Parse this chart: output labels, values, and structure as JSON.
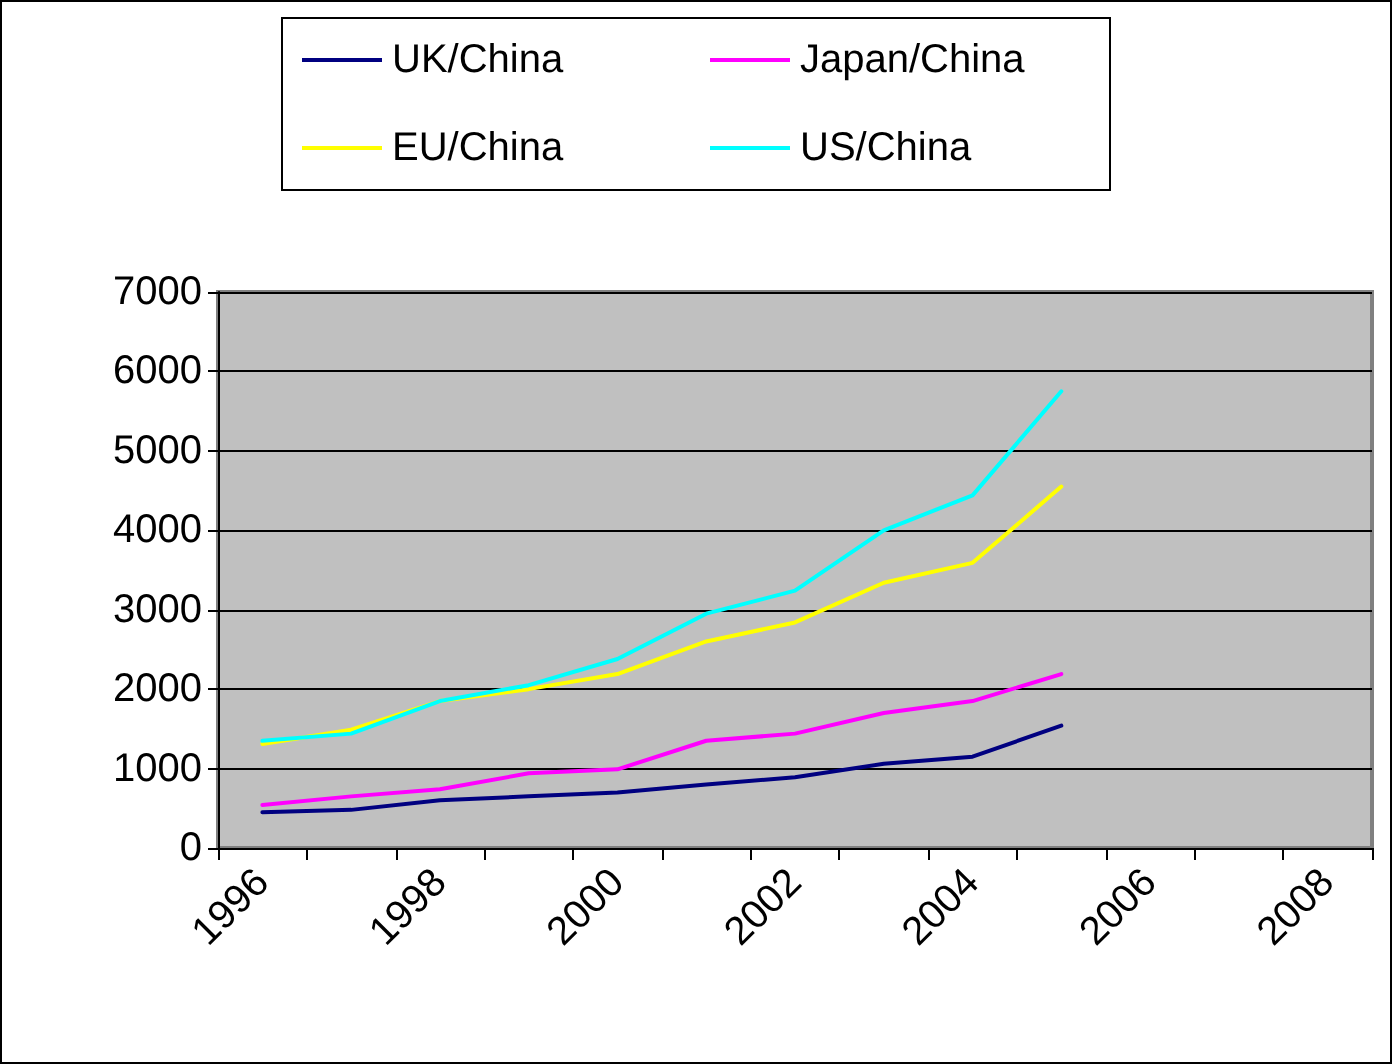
{
  "chart_data": {
    "type": "line",
    "categories": [
      "1996",
      null,
      "1998",
      null,
      "2000",
      null,
      "2002",
      null,
      "2004",
      null,
      "2006",
      null,
      "2008"
    ],
    "series": [
      {
        "name": "UK/China",
        "color": "#000080",
        "values": [
          450,
          480,
          600,
          650,
          700,
          800,
          890,
          1060,
          1150,
          1540,
          null,
          null,
          null
        ]
      },
      {
        "name": "Japan/China",
        "color": "#ff00ff",
        "values": [
          540,
          650,
          740,
          940,
          990,
          1350,
          1440,
          1700,
          1850,
          2190,
          null,
          null,
          null
        ]
      },
      {
        "name": "EU/China",
        "color": "#ffff00",
        "values": [
          1310,
          1490,
          1850,
          2000,
          2190,
          2600,
          2840,
          3340,
          3590,
          4550,
          null,
          null,
          null
        ]
      },
      {
        "name": "US/China",
        "color": "#00ffff",
        "values": [
          1350,
          1440,
          1850,
          2050,
          2380,
          2950,
          3240,
          4000,
          4440,
          5750,
          null,
          null,
          null
        ]
      }
    ],
    "ylim": [
      0,
      7000
    ],
    "yticks": [
      0,
      1000,
      2000,
      3000,
      4000,
      5000,
      6000,
      7000
    ],
    "grid": "y",
    "legend": "top",
    "marker": "none",
    "line_style": "solid"
  }
}
